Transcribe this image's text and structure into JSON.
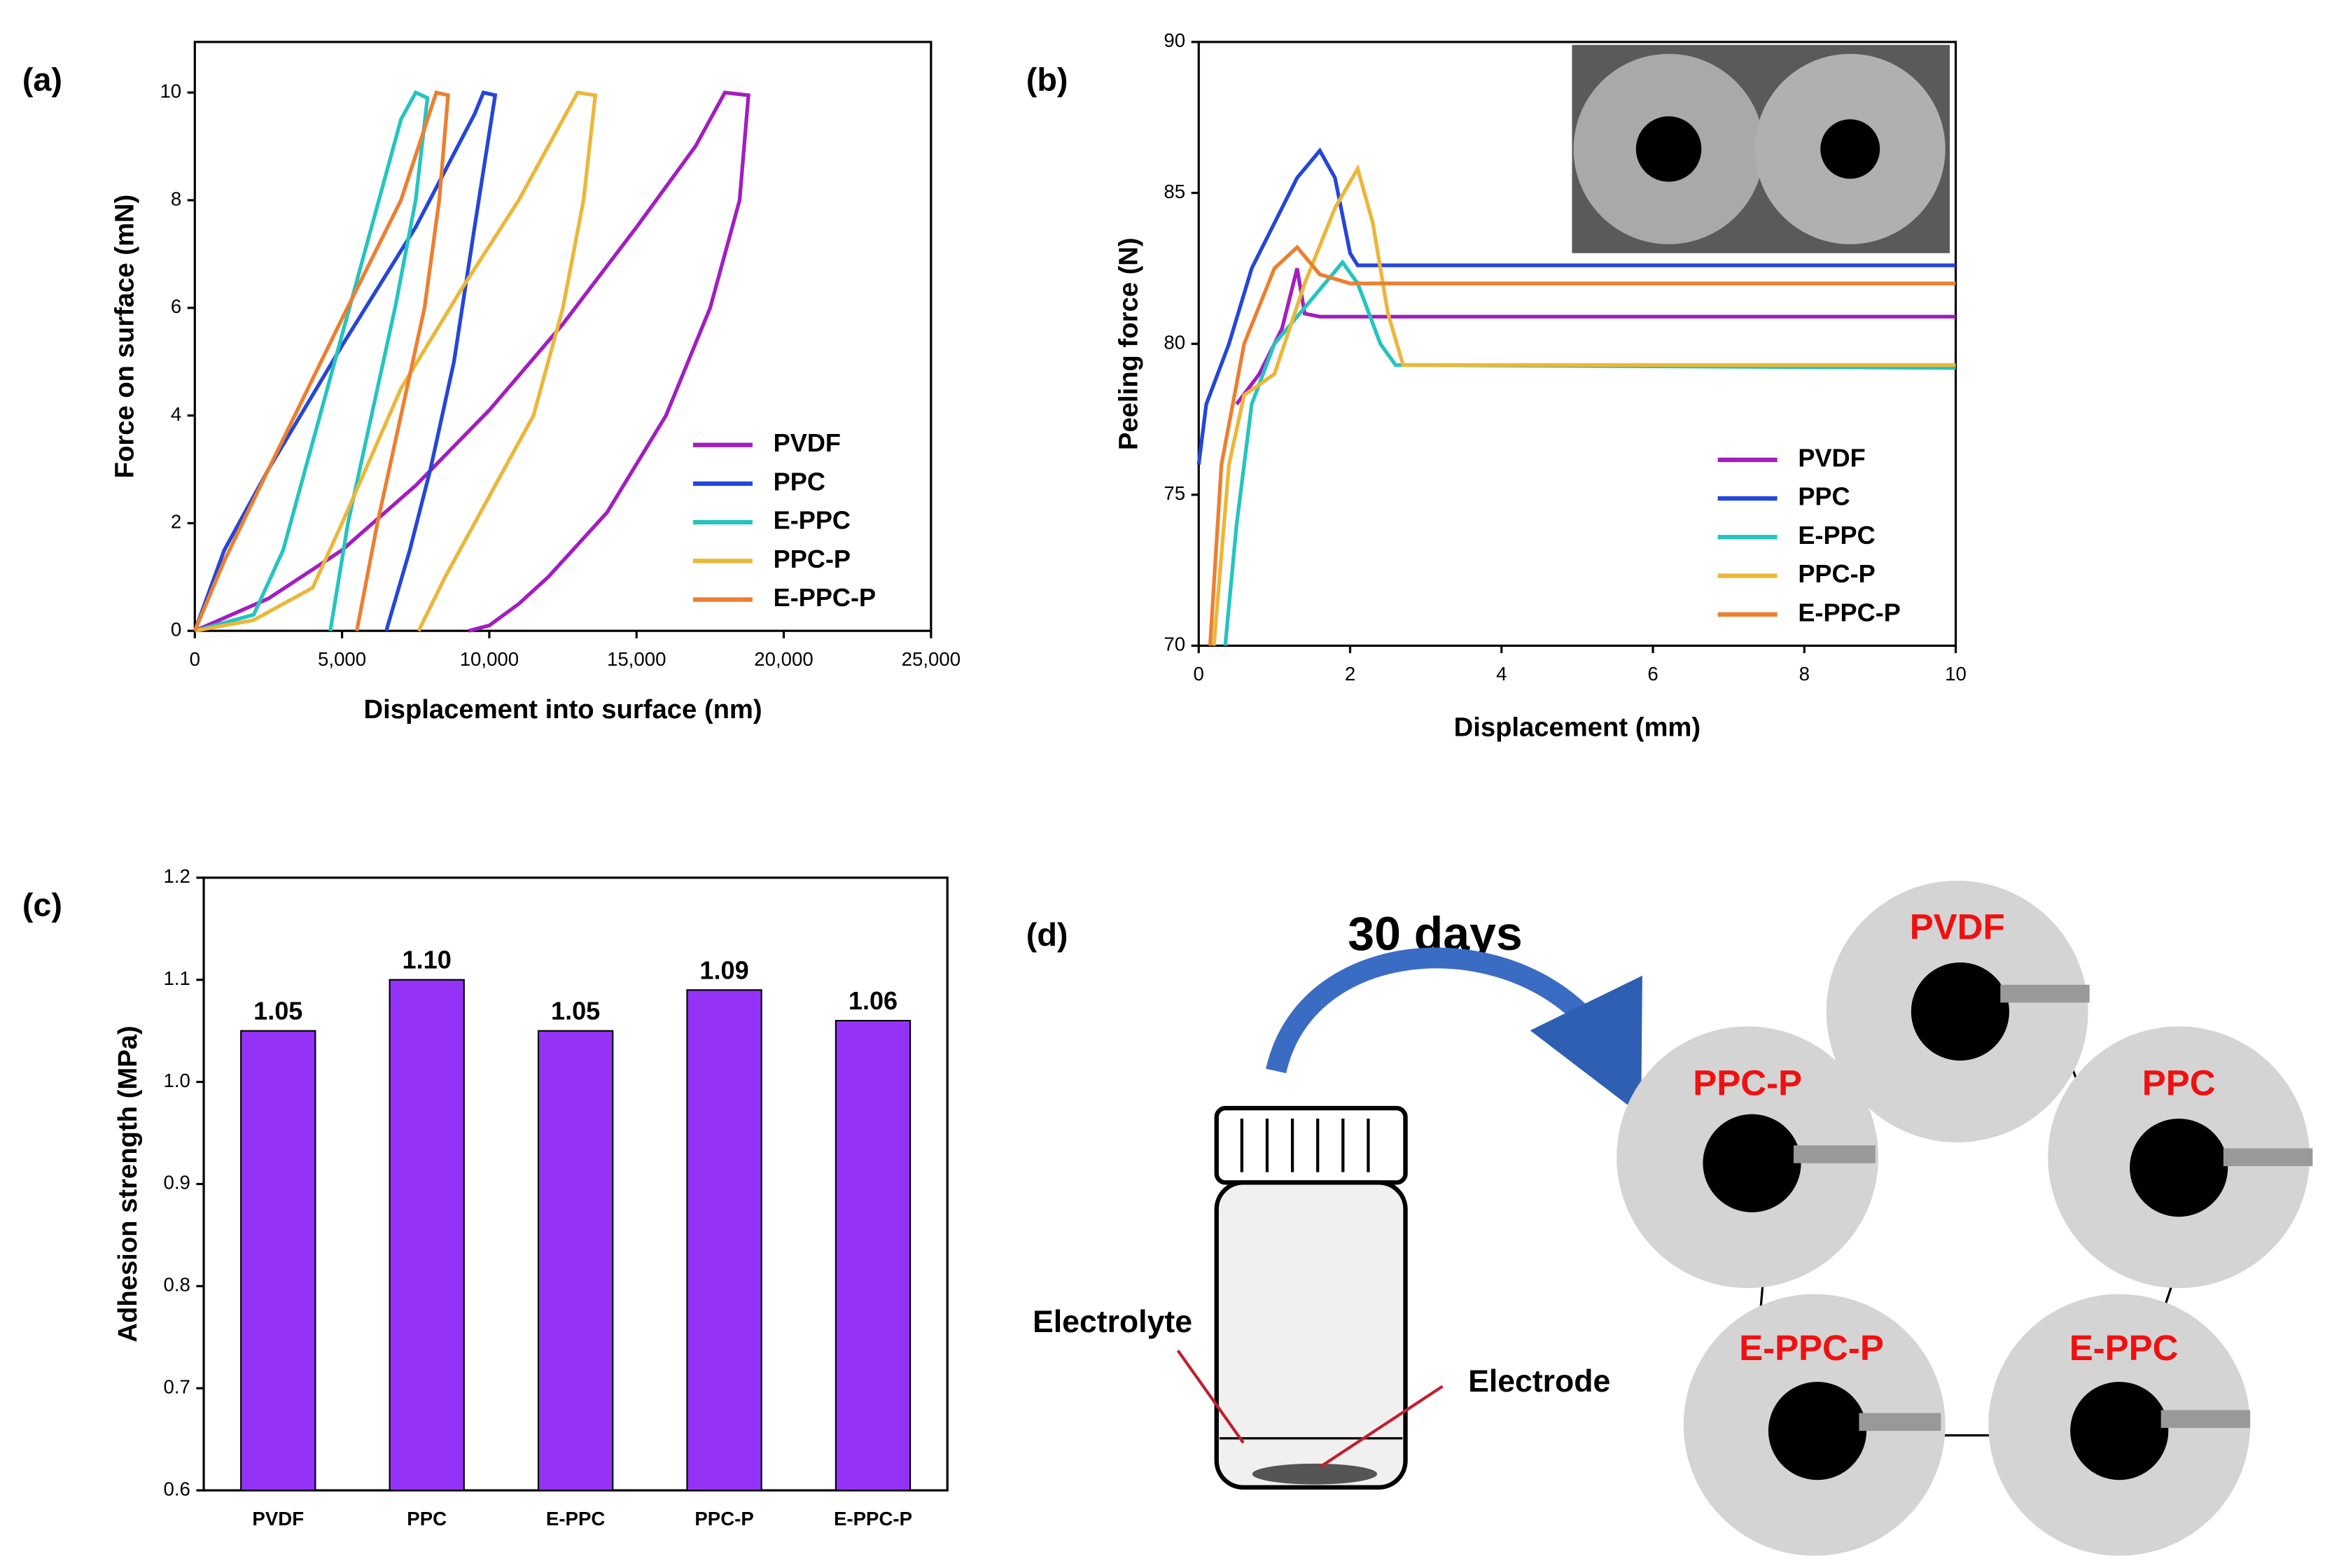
{
  "chart_data": [
    {
      "type": "line",
      "label": "(a)",
      "xlabel": "Displacement into surface (nm)",
      "ylabel": "Force on surface (mN)",
      "xlim": [
        0,
        25000
      ],
      "ylim": [
        0,
        10.94
      ],
      "xticks": [
        0,
        {
          "value": 5000,
          "label": "5,000"
        },
        {
          "value": 10000,
          "label": "10,000"
        },
        {
          "value": 15000,
          "label": "15,000"
        },
        {
          "value": 20000,
          "label": "20,000"
        },
        {
          "value": 25000,
          "label": "25,000"
        }
      ],
      "yticks": [
        0,
        2,
        4,
        6,
        8,
        10
      ],
      "legend": "lower right",
      "series": [
        {
          "name": "PVDF",
          "color": "#a21ec0",
          "x": [
            0,
            2500,
            5000,
            7500,
            10000,
            12500,
            15000,
            17000,
            18000,
            18800,
            18500,
            17500,
            16000,
            14000,
            12000,
            11000,
            10000,
            9300
          ],
          "values": [
            0,
            0.6,
            1.5,
            2.7,
            4.1,
            5.7,
            7.5,
            9,
            10,
            9.95,
            8,
            6,
            4,
            2.2,
            1,
            0.5,
            0.1,
            0
          ]
        },
        {
          "name": "PPC",
          "color": "#2546d8",
          "x": [
            0,
            1000,
            2500,
            5000,
            7500,
            9500,
            9800,
            10200,
            9500,
            8800,
            8000,
            7300,
            6500
          ],
          "values": [
            0,
            1.5,
            3,
            5.3,
            7.5,
            9.6,
            10,
            9.95,
            7.5,
            5,
            3,
            1.5,
            0
          ]
        },
        {
          "name": "E-PPC",
          "color": "#25c4bf",
          "x": [
            0,
            2000,
            3000,
            4000,
            5000,
            6000,
            7000,
            7500,
            7900,
            7500,
            6800,
            6000,
            5200,
            4600
          ],
          "values": [
            0,
            0.3,
            1.5,
            3.5,
            5.5,
            7.5,
            9.5,
            10,
            9.9,
            8,
            6,
            4,
            2,
            0
          ]
        },
        {
          "name": "PPC-P",
          "color": "#ebb73a",
          "x": [
            0,
            2000,
            4000,
            5000,
            7000,
            9000,
            11000,
            13000,
            13600,
            13200,
            12500,
            11500,
            10000,
            8500,
            7600
          ],
          "values": [
            0,
            0.2,
            0.8,
            2,
            4.5,
            6.3,
            8,
            10,
            9.95,
            8,
            6,
            4,
            2.5,
            1,
            0
          ]
        },
        {
          "name": "E-PPC-P",
          "color": "#ec7f30",
          "x": [
            0,
            1000,
            2500,
            5000,
            7000,
            8200,
            8600,
            8300,
            7800,
            7000,
            6200,
            5500
          ],
          "values": [
            0,
            1.3,
            3,
            5.8,
            8,
            10,
            9.95,
            8,
            6,
            4,
            2,
            0
          ]
        }
      ]
    },
    {
      "type": "line",
      "label": "(b)",
      "xlabel": "Displacement (mm)",
      "ylabel": "Peeling force (N)",
      "xlim": [
        0,
        10
      ],
      "ylim": [
        70,
        90
      ],
      "xticks": [
        0,
        2,
        4,
        6,
        8,
        10
      ],
      "yticks": [
        70,
        75,
        80,
        85,
        90
      ],
      "legend": "lower right",
      "series": [
        {
          "name": "PVDF",
          "color": "#a21ec0",
          "x": [
            0.5,
            0.8,
            1.1,
            1.3,
            1.4,
            1.6,
            10
          ],
          "values": [
            78,
            79,
            80.5,
            82.5,
            81,
            80.9,
            80.9
          ]
        },
        {
          "name": "PPC",
          "color": "#2546d8",
          "x": [
            0,
            0.1,
            0.4,
            0.7,
            1,
            1.3,
            1.6,
            1.8,
            2,
            2.1,
            10
          ],
          "values": [
            76,
            78,
            80,
            82.5,
            84,
            85.5,
            86.4,
            85.5,
            83,
            82.6,
            82.6
          ]
        },
        {
          "name": "E-PPC",
          "color": "#25c4bf",
          "x": [
            0.35,
            0.5,
            0.7,
            1,
            1.5,
            1.9,
            2.1,
            2.4,
            2.6,
            10
          ],
          "values": [
            70,
            74,
            78,
            80,
            81.5,
            82.7,
            82,
            80,
            79.3,
            79.2
          ]
        },
        {
          "name": "PPC-P",
          "color": "#ebb73a",
          "x": [
            0.2,
            0.4,
            0.6,
            1,
            1.4,
            1.8,
            2.1,
            2.3,
            2.5,
            2.7,
            10
          ],
          "values": [
            70,
            76,
            78.3,
            79,
            82,
            84.5,
            85.8,
            84,
            81,
            79.3,
            79.3
          ]
        },
        {
          "name": "E-PPC-P",
          "color": "#ec7f30",
          "x": [
            0.15,
            0.3,
            0.6,
            1,
            1.3,
            1.6,
            2,
            10
          ],
          "values": [
            70,
            76,
            80,
            82.5,
            83.2,
            82.3,
            82,
            82
          ]
        }
      ]
    },
    {
      "type": "bar",
      "label": "(c)",
      "ylabel": "Adhesion strength (MPa)",
      "ylim": [
        0.6,
        1.2
      ],
      "yticks": [
        0.6,
        0.7,
        0.8,
        0.9,
        {
          "value": 1.0,
          "label": "1.0"
        },
        1.1,
        1.2
      ],
      "categories": [
        "PVDF",
        "PPC",
        "E-PPC",
        "PPC-P",
        "E-PPC-P"
      ],
      "values": [
        1.05,
        1.1,
        1.05,
        1.09,
        1.06
      ],
      "value_labels": [
        "1.05",
        "1.10",
        "1.05",
        "1.09",
        "1.06"
      ],
      "color": "#9433f5"
    }
  ],
  "diagram": {
    "label": "(d)",
    "time": "30 days",
    "electrolyte": "Electrolyte",
    "electrode": "Electrode",
    "samples": [
      "PVDF",
      "PPC",
      "PPC-P",
      "E-PPC-P",
      "E-PPC"
    ]
  }
}
